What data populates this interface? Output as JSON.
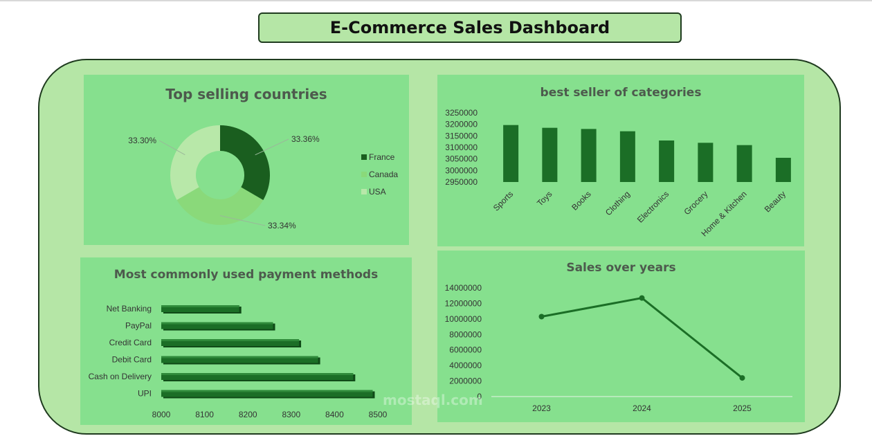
{
  "dashboard": {
    "title": "E-Commerce Sales Dashboard"
  },
  "watermark": {
    "text": "mostaql.com"
  },
  "colors": {
    "dark_green": "#1b6e26",
    "bg": "#b5e6a6",
    "panel": "#86e08e"
  },
  "chart_data": [
    {
      "id": "countries",
      "type": "pie",
      "title": "Top selling countries",
      "labels": [
        "France",
        "Canada",
        "USA"
      ],
      "values": [
        33.36,
        33.34,
        33.3
      ],
      "data_labels": [
        "33.36%",
        "33.34%",
        "33.30%"
      ],
      "colors": [
        "#1a5e1f",
        "#8ad97a",
        "#b8e8a9"
      ],
      "legend": "right"
    },
    {
      "id": "categories",
      "type": "bar",
      "title": "best seller of categories",
      "categories": [
        "Sports",
        "Toys",
        "Books",
        "Clothing",
        "Electronics",
        "Grocery",
        "Home & Kitchen",
        "Beauty"
      ],
      "values": [
        3197000,
        3185000,
        3180000,
        3170000,
        3130000,
        3120000,
        3110000,
        3055000
      ],
      "ylim": [
        2950000,
        3250000
      ],
      "yticks": [
        "3250000",
        "3200000",
        "3150000",
        "3100000",
        "3050000",
        "3000000",
        "2950000"
      ]
    },
    {
      "id": "payments",
      "type": "bar",
      "orientation": "horizontal",
      "title": "Most commonly used payment methods",
      "categories": [
        "Net Banking",
        "PayPal",
        "Credit Card",
        "Debit Card",
        "Cash on Delivery",
        "UPI"
      ],
      "values": [
        8180,
        8258,
        8318,
        8362,
        8443,
        8488
      ],
      "xlim": [
        8000,
        8500
      ],
      "xticks": [
        "8000",
        "8100",
        "8200",
        "8300",
        "8400",
        "8500"
      ]
    },
    {
      "id": "years",
      "type": "line",
      "title": "Sales over years",
      "x": [
        "2023",
        "2024",
        "2025"
      ],
      "values": [
        10300000,
        12700000,
        2400000
      ],
      "ylim": [
        0,
        14000000
      ],
      "yticks": [
        "14000000",
        "12000000",
        "10000000",
        "8000000",
        "6000000",
        "4000000",
        "2000000",
        "0"
      ]
    }
  ]
}
